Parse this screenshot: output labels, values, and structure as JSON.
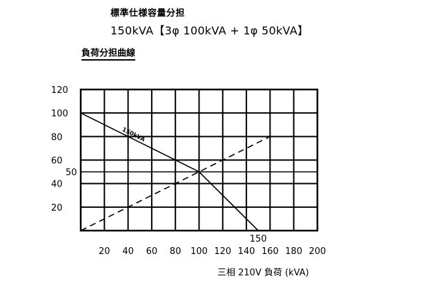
{
  "header": {
    "title": "標準仕様容量分担",
    "subtitle": "150kVA【3φ 100kVA + 1φ 50kVA】"
  },
  "section_label": "負荷分担曲線",
  "chart_data": {
    "type": "line",
    "title": "負荷分担曲線",
    "xlabel": "三相 210V 負荷 (kVA)",
    "ylabel": "",
    "xlim": [
      0,
      200
    ],
    "ylim": [
      0,
      120
    ],
    "grid": true,
    "x_ticks": [
      "20",
      "40",
      "60",
      "80",
      "100",
      "120",
      "140",
      "160",
      "180",
      "200"
    ],
    "y_ticks": [
      "20",
      "40",
      "60",
      "80",
      "100",
      "120"
    ],
    "extra_y_ticks": [
      "50"
    ],
    "extra_x_ticks": [
      "150"
    ],
    "series": [
      {
        "name": "150kVA",
        "style": "solid",
        "x": [
          0,
          100,
          150
        ],
        "y": [
          100,
          50,
          0
        ]
      },
      {
        "name": "",
        "style": "dashed",
        "x": [
          0,
          160
        ],
        "y": [
          0,
          80
        ]
      }
    ]
  }
}
